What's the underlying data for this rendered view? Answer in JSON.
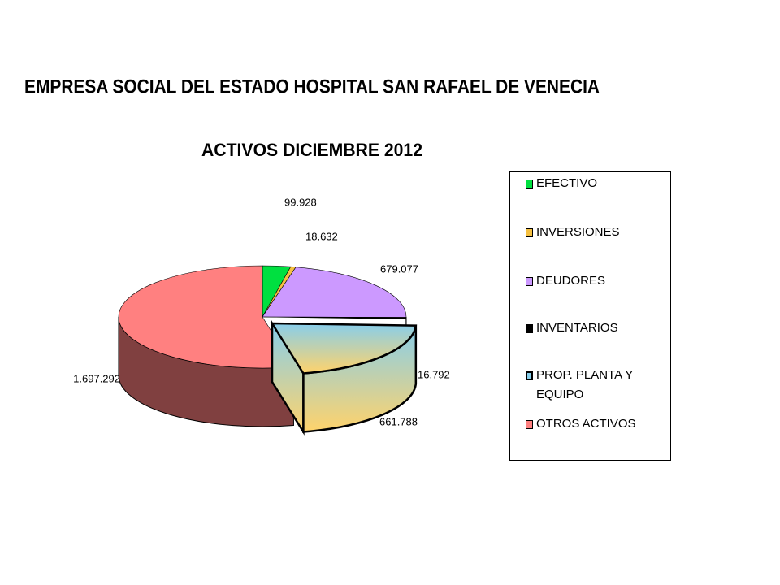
{
  "header": "EMPRESA SOCIAL DEL ESTADO HOSPITAL SAN RAFAEL DE VENECIA",
  "chart_data": {
    "type": "pie",
    "title": "ACTIVOS  DICIEMBRE 2012",
    "categories": [
      "EFECTIVO",
      "INVERSIONES",
      "DEUDORES",
      "INVENTARIOS",
      "PROP. PLANTA Y EQUIPO",
      "OTROS ACTIVOS"
    ],
    "values": [
      99928,
      18632,
      679077,
      16792,
      661788,
      1697292
    ],
    "value_labels": [
      "99.928",
      "18.632",
      "679.077",
      "16.792",
      "661.788",
      "1.697.292"
    ],
    "colors": [
      "#00e040",
      "#f5c040",
      "#cc99ff",
      "#000000",
      "#87ceeb",
      "#ff8080"
    ],
    "legend": "right"
  }
}
